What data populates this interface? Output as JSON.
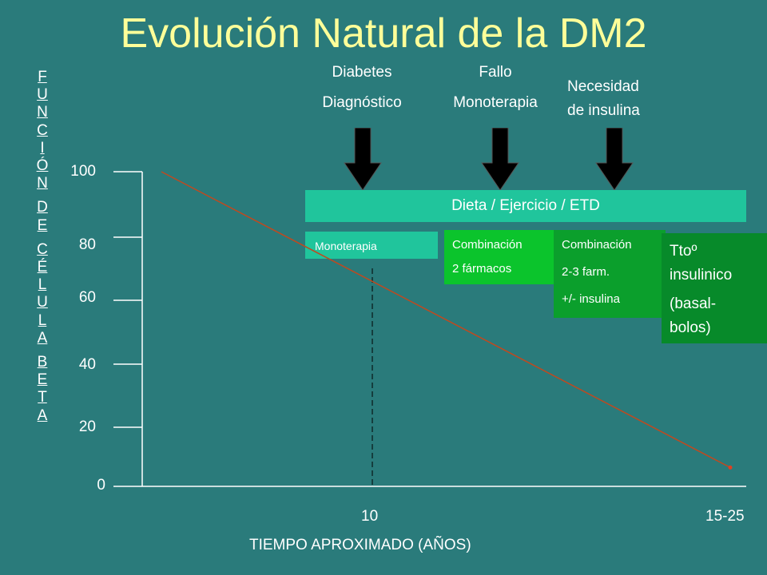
{
  "title": "Evolución Natural de la DM2",
  "y_axis_label_letters": [
    "F",
    "U",
    "N",
    "C",
    "I",
    "Ó",
    "N",
    "",
    "D",
    "E",
    "",
    "C",
    "É",
    "L",
    "U",
    "L",
    "A",
    "",
    "B",
    "E",
    "T",
    "A"
  ],
  "events": [
    {
      "line1": "Diabetes",
      "line2": "Diagnóstico"
    },
    {
      "line1": "Fallo",
      "line2": "Monoterapia"
    },
    {
      "line1": "Necesidad",
      "line2": "de insulina"
    }
  ],
  "treatments": {
    "diet": "Dieta / Ejercicio / ETD",
    "monotherapy": "Monoterapia",
    "combo2": {
      "line1": "Combinación",
      "line2": "2 fármacos"
    },
    "combo3": {
      "line1": "Combinación",
      "line2": "2-3 farm.",
      "line3": "+/- insulina"
    },
    "insulin": {
      "line1": "Ttoº",
      "line2": "insulinico",
      "line3": "(basal-",
      "line4": "bolos)"
    }
  },
  "colors": {
    "background": "#2a7b7b",
    "title": "#ffff99",
    "diet_bar": "#20c59c",
    "monotherapy": "#20c59c",
    "combo2": "#0bc42c",
    "combo3": "#0b9f2c",
    "insulin": "#078a2a",
    "decline_line": "#c0491f"
  },
  "chart_data": {
    "type": "line",
    "title": "Evolución Natural de la DM2",
    "xlabel": "TIEMPO APROXIMADO (AÑOS)",
    "ylabel": "FUNCIÓN DE CÉLULA BETA",
    "y_ticks": [
      "100",
      "80",
      "60",
      "40",
      "20",
      "0"
    ],
    "x_ticks": [
      "10",
      "15-25"
    ],
    "ylim": [
      0,
      100
    ],
    "series": [
      {
        "x": [
          0,
          20
        ],
        "y": [
          100,
          6
        ]
      }
    ],
    "reference_line_x": 10,
    "grid": false
  }
}
